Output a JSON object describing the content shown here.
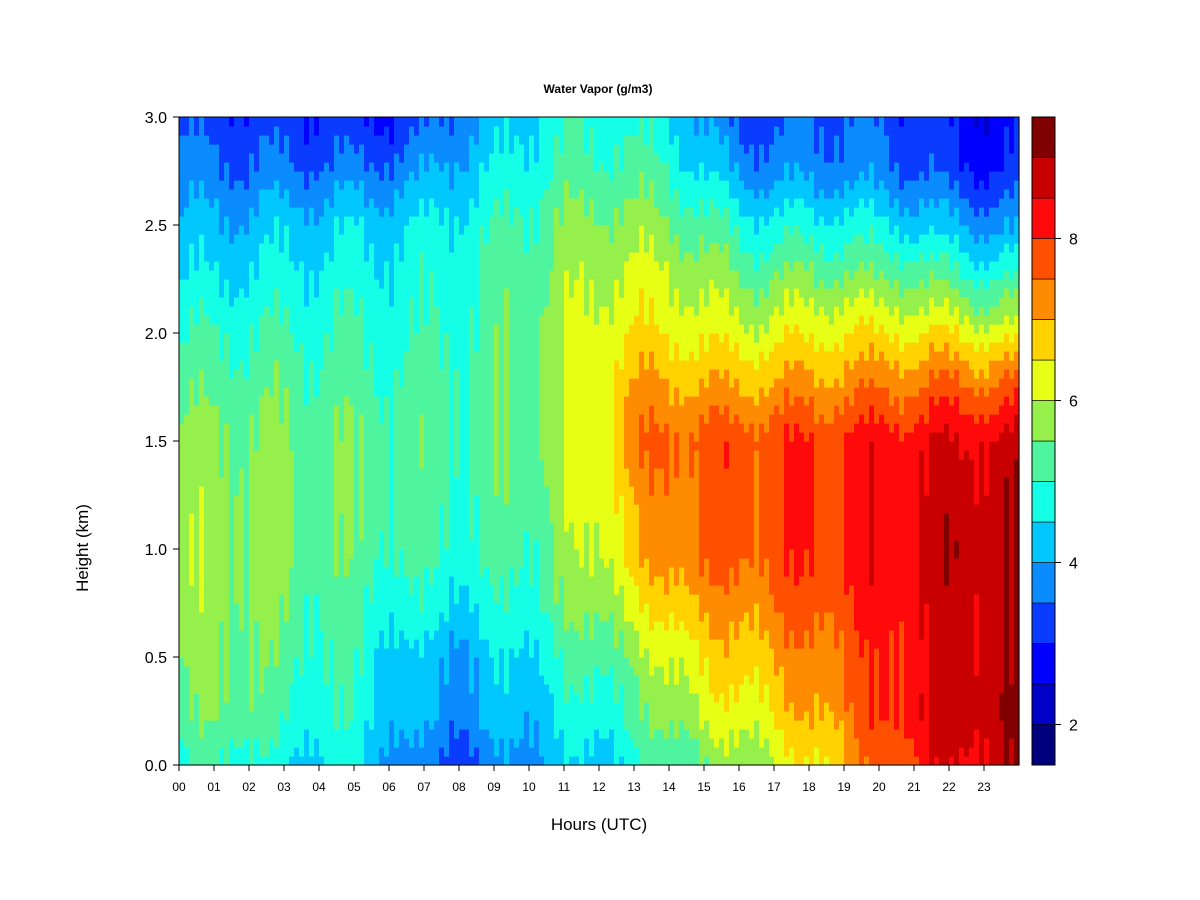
{
  "chart_data": {
    "type": "heatmap",
    "title": "Water Vapor (g/m3)",
    "xlabel": "Hours (UTC)",
    "ylabel": "Height (km)",
    "xlim": [
      0,
      24
    ],
    "ylim": [
      0.0,
      3.0
    ],
    "x_ticks": [
      "00",
      "01",
      "02",
      "03",
      "04",
      "05",
      "06",
      "07",
      "08",
      "09",
      "10",
      "11",
      "12",
      "13",
      "14",
      "15",
      "16",
      "17",
      "18",
      "19",
      "20",
      "21",
      "22",
      "23"
    ],
    "y_ticks": [
      "0.0",
      "0.5",
      "1.0",
      "1.5",
      "2.0",
      "2.5",
      "3.0"
    ],
    "colorbar": {
      "range": [
        1.5,
        9.5
      ],
      "ticks": [
        2,
        4,
        6,
        8
      ],
      "levels": [
        "#00007f",
        "#0000c8",
        "#0000ff",
        "#0a3cff",
        "#0a8cff",
        "#00c8ff",
        "#14ffe6",
        "#4ef59e",
        "#96f04c",
        "#e6ff14",
        "#ffd200",
        "#ff8c00",
        "#ff5000",
        "#ff0a0a",
        "#c80000",
        "#800000"
      ]
    },
    "hours": [
      0,
      1,
      2,
      3,
      4,
      5,
      6,
      7,
      8,
      9,
      10,
      11,
      12,
      13,
      14,
      15,
      16,
      17,
      18,
      19,
      20,
      21,
      22,
      23,
      24
    ],
    "heights": [
      0.0,
      0.25,
      0.5,
      0.75,
      1.0,
      1.25,
      1.5,
      1.75,
      2.0,
      2.25,
      2.5,
      2.75,
      3.0
    ],
    "values": [
      [
        4.8,
        5.0,
        5.0,
        4.4,
        4.6,
        4.5,
        4.0,
        3.5,
        3.3,
        3.6,
        4.0,
        4.2,
        4.4,
        4.7,
        5.2,
        5.4,
        5.7,
        6.0,
        6.4,
        6.9,
        7.6,
        8.1,
        8.4,
        8.6,
        8.8
      ],
      [
        5.2,
        5.5,
        5.5,
        4.9,
        5.0,
        4.8,
        4.4,
        4.0,
        3.9,
        4.1,
        4.3,
        4.6,
        4.9,
        5.1,
        5.8,
        6.1,
        6.3,
        6.6,
        7.0,
        7.4,
        7.9,
        8.4,
        8.7,
        9.0,
        9.1
      ],
      [
        5.5,
        5.6,
        5.6,
        5.1,
        5.1,
        4.9,
        4.5,
        4.1,
        4.0,
        4.3,
        4.6,
        4.9,
        5.3,
        5.5,
        6.2,
        6.5,
        6.8,
        7.0,
        7.3,
        7.6,
        7.9,
        8.3,
        8.6,
        8.8,
        8.8
      ],
      [
        5.7,
        5.7,
        5.7,
        5.4,
        5.2,
        5.1,
        4.9,
        4.7,
        4.6,
        4.7,
        5.0,
        5.4,
        5.8,
        6.2,
        6.9,
        7.1,
        7.2,
        7.5,
        7.7,
        7.9,
        8.2,
        8.5,
        8.7,
        8.8,
        8.8
      ],
      [
        5.8,
        5.8,
        5.7,
        5.6,
        5.5,
        5.3,
        5.2,
        5.0,
        5.0,
        5.0,
        5.2,
        5.6,
        6.2,
        6.7,
        7.4,
        7.6,
        7.7,
        7.8,
        8.0,
        8.1,
        8.3,
        8.6,
        8.8,
        8.9,
        8.9
      ],
      [
        5.7,
        5.7,
        5.7,
        5.6,
        5.5,
        5.4,
        5.3,
        5.1,
        5.1,
        5.2,
        5.4,
        5.8,
        6.3,
        6.9,
        7.5,
        7.6,
        7.7,
        7.8,
        8.0,
        8.1,
        8.3,
        8.5,
        8.7,
        8.8,
        8.8
      ],
      [
        5.6,
        5.6,
        5.6,
        5.5,
        5.5,
        5.4,
        5.3,
        5.2,
        5.2,
        5.3,
        5.5,
        5.9,
        6.5,
        7.3,
        7.7,
        7.7,
        7.8,
        7.9,
        8.0,
        8.1,
        8.2,
        8.4,
        8.5,
        8.6,
        8.6
      ],
      [
        5.3,
        5.3,
        5.3,
        5.3,
        5.2,
        5.2,
        5.1,
        5.1,
        5.2,
        5.3,
        5.5,
        5.9,
        6.5,
        7.0,
        7.1,
        7.0,
        7.0,
        7.1,
        7.2,
        7.3,
        7.4,
        7.5,
        7.6,
        7.6,
        7.6
      ],
      [
        4.9,
        5.0,
        5.0,
        5.0,
        5.0,
        5.0,
        4.9,
        4.9,
        5.0,
        5.2,
        5.5,
        5.9,
        6.3,
        6.5,
        6.5,
        6.3,
        6.2,
        6.3,
        6.4,
        6.5,
        6.5,
        6.5,
        6.5,
        6.3,
        6.2
      ],
      [
        4.5,
        4.5,
        4.6,
        4.6,
        4.7,
        4.7,
        4.7,
        4.8,
        4.9,
        5.1,
        5.4,
        5.7,
        6.0,
        6.1,
        6.1,
        5.8,
        5.5,
        5.5,
        5.6,
        5.6,
        5.5,
        5.5,
        5.2,
        5.0,
        4.9
      ],
      [
        4.1,
        4.1,
        4.2,
        4.3,
        4.3,
        4.4,
        4.4,
        4.5,
        4.7,
        4.9,
        5.2,
        5.5,
        5.7,
        5.7,
        5.6,
        5.2,
        4.8,
        4.7,
        4.7,
        4.7,
        4.6,
        4.4,
        4.1,
        3.9,
        3.8
      ],
      [
        3.7,
        3.6,
        3.6,
        3.6,
        3.6,
        3.6,
        3.7,
        3.9,
        4.2,
        4.5,
        4.8,
        5.1,
        5.2,
        5.2,
        5.0,
        4.4,
        3.9,
        3.8,
        3.8,
        3.8,
        3.7,
        3.5,
        3.2,
        3.0,
        3.0
      ],
      [
        3.4,
        3.2,
        3.2,
        3.1,
        3.1,
        3.0,
        3.0,
        3.3,
        3.7,
        4.1,
        4.5,
        4.8,
        4.9,
        4.8,
        4.6,
        3.9,
        3.3,
        3.3,
        3.5,
        3.5,
        3.4,
        3.2,
        2.9,
        2.7,
        2.7
      ]
    ]
  }
}
